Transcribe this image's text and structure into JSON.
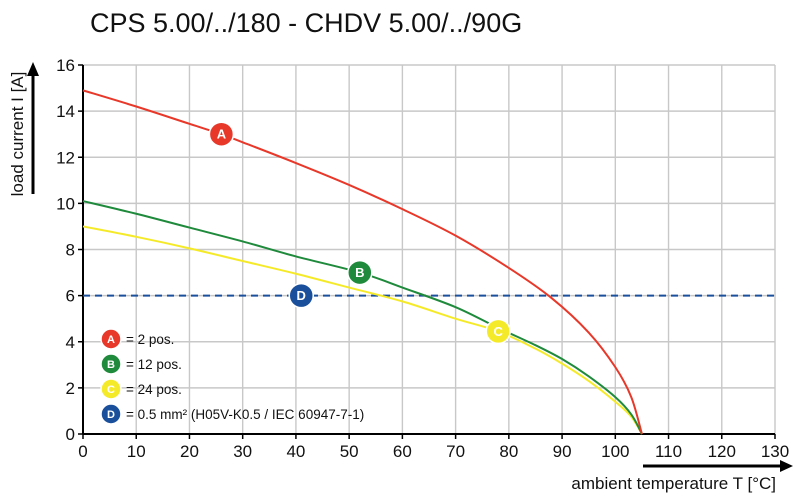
{
  "chart_data": {
    "type": "line",
    "title": "CPS 5.00/../180 - CHDV 5.00/../90G",
    "xlabel": "ambient temperature T [°C]",
    "ylabel": "load current I [A]",
    "xlim": [
      0,
      130
    ],
    "ylim": [
      0,
      16
    ],
    "x_ticks": [
      0,
      10,
      20,
      30,
      40,
      50,
      60,
      70,
      80,
      90,
      100,
      110,
      120,
      130
    ],
    "y_ticks": [
      0,
      2,
      4,
      6,
      8,
      10,
      12,
      14,
      16
    ],
    "grid": true,
    "series": [
      {
        "name": "A",
        "label": "= 2 pos.",
        "color": "#e8382a",
        "x": [
          0,
          10,
          20,
          26,
          30,
          40,
          50,
          60,
          70,
          80,
          88,
          95,
          100,
          103,
          105
        ],
        "y": [
          14.9,
          14.2,
          13.45,
          13.0,
          12.65,
          11.75,
          10.8,
          9.75,
          8.6,
          7.2,
          5.9,
          4.4,
          2.9,
          1.6,
          0.0
        ],
        "marker_x": 26,
        "marker_y": 13.0
      },
      {
        "name": "B",
        "label": "= 12 pos.",
        "color": "#1f8a3c",
        "x": [
          0,
          10,
          20,
          30,
          40,
          52,
          60,
          70,
          78,
          85,
          90,
          95,
          100,
          103,
          105
        ],
        "y": [
          10.1,
          9.55,
          8.95,
          8.35,
          7.7,
          7.0,
          6.35,
          5.5,
          4.6,
          3.85,
          3.25,
          2.5,
          1.6,
          0.85,
          0.0
        ],
        "marker_x": 52,
        "marker_y": 7.0
      },
      {
        "name": "C",
        "label": "= 24 pos.",
        "color": "#f5ea2a",
        "x": [
          0,
          10,
          20,
          30,
          40,
          50,
          60,
          70,
          78,
          85,
          90,
          95,
          100,
          103,
          105
        ],
        "y": [
          9.0,
          8.55,
          8.05,
          7.5,
          6.95,
          6.35,
          5.75,
          5.0,
          4.45,
          3.7,
          3.05,
          2.3,
          1.4,
          0.75,
          0.0
        ],
        "marker_x": 78,
        "marker_y": 4.45
      }
    ],
    "reference_line": {
      "name": "D",
      "label": "= 0.5 mm² (H05V-K0.5 / IEC 60947-7-1)",
      "color": "#1a4f9c",
      "y": 6,
      "marker_x": 41,
      "marker_y": 6
    }
  }
}
